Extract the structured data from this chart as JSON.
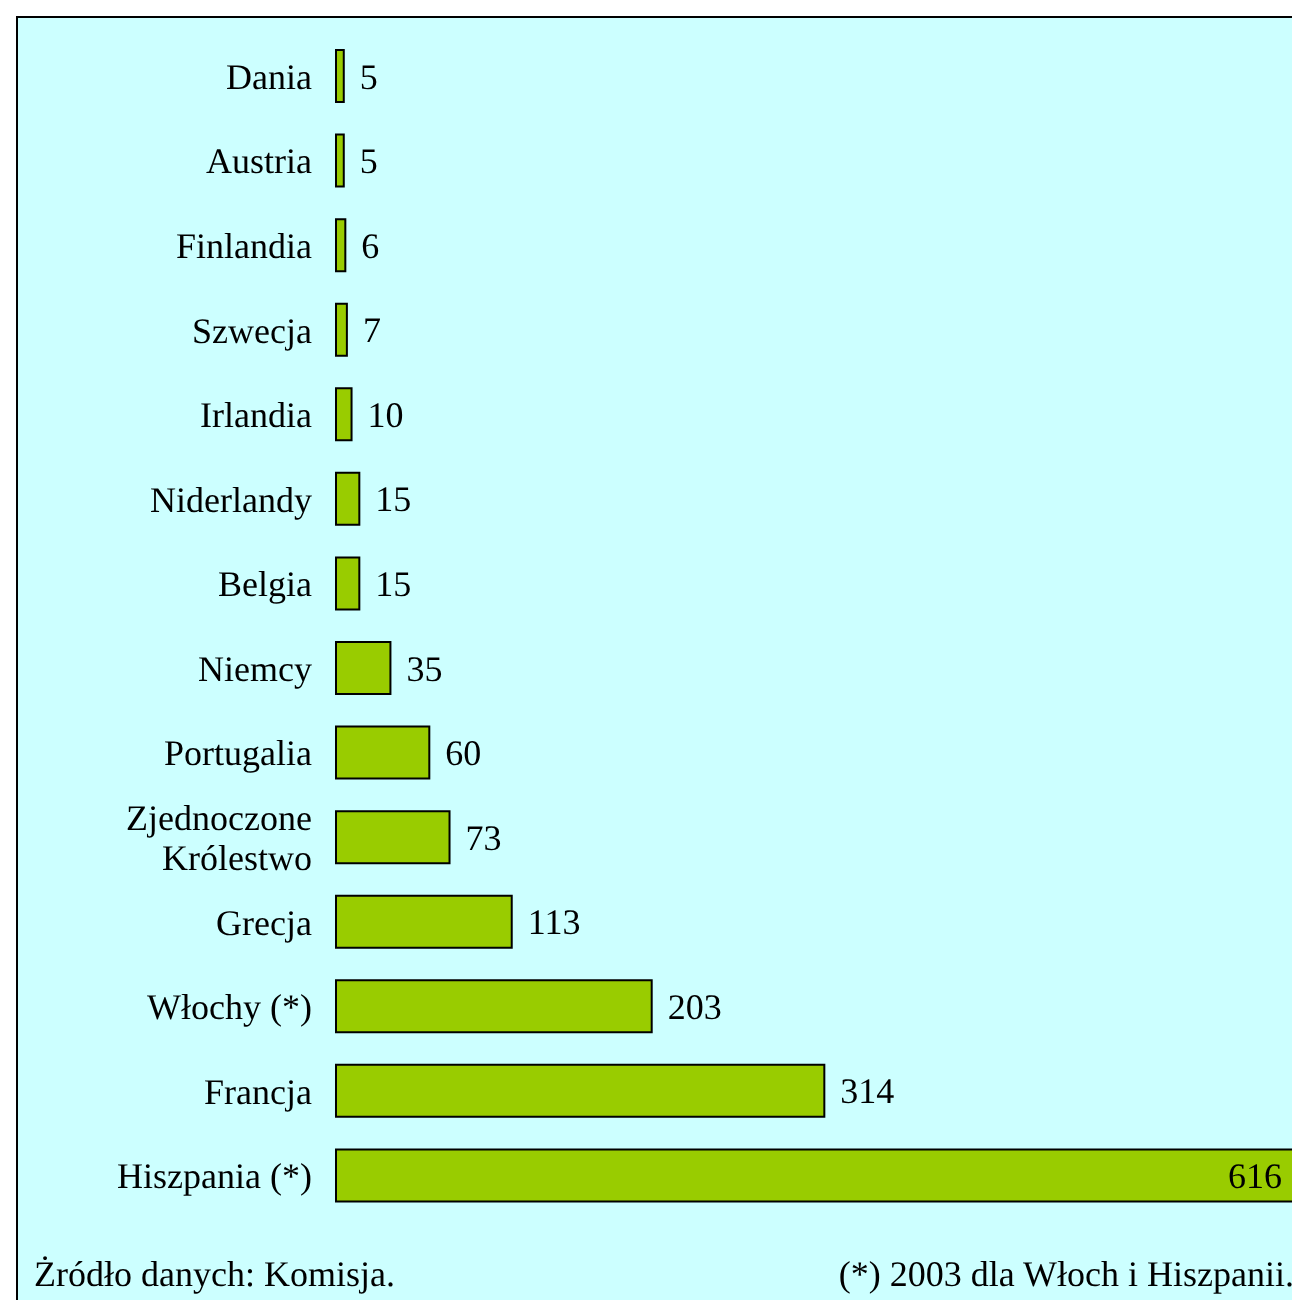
{
  "chart_data": {
    "type": "bar",
    "orientation": "horizontal",
    "data_labels": true,
    "categories": [
      "Dania",
      "Austria",
      "Finlandia",
      "Szwecja",
      "Irlandia",
      "Niderlandy",
      "Belgia",
      "Niemcy",
      "Portugalia",
      "Zjednoczone Królestwo",
      "Grecja",
      "Włochy (*)",
      "Francja",
      "Hiszpania (*)"
    ],
    "values": [
      5,
      5,
      6,
      7,
      10,
      15,
      15,
      35,
      60,
      73,
      113,
      203,
      314,
      616
    ],
    "color": "#99cc00",
    "annotations": [
      "Żródło danych: Komisja.",
      "(*) 2003 dla Włoch i Hiszpanii."
    ]
  }
}
